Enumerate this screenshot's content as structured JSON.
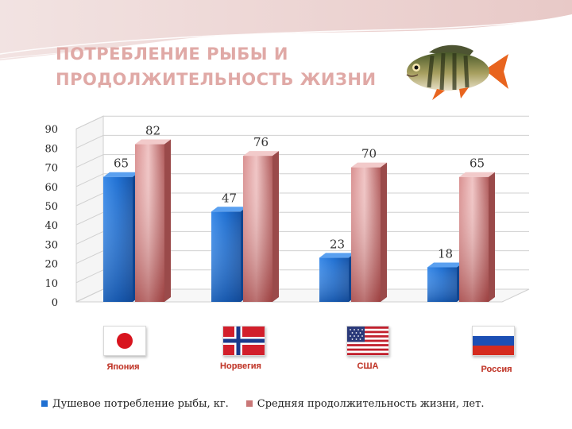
{
  "title": "ПОТРЕБЛЕНИЕ РЫБЫ И ПРОДОЛЖИТЕЛЬНОСТЬ ЖИЗНИ",
  "icons": {
    "fish": "perch-fish-icon",
    "flags": [
      "japan-flag-icon",
      "norway-flag-icon",
      "usa-flag-icon",
      "russia-flag-icon"
    ]
  },
  "colors": {
    "fish_series": "#1f6fd1",
    "life_series": "#c97777",
    "title": "#e0a9a6",
    "country_label": "#c0392b"
  },
  "chart_data": {
    "type": "bar",
    "categories": [
      "Япония",
      "Норвегия",
      "США",
      "Россия"
    ],
    "series": [
      {
        "name": "Душевое потребление рыбы, кг.",
        "values": [
          65,
          47,
          23,
          18
        ]
      },
      {
        "name": "Средняя продолжительность жизни, лет.",
        "values": [
          82,
          76,
          70,
          65
        ]
      }
    ],
    "ylim": [
      0,
      90
    ],
    "yticks": [
      "0",
      "10",
      "20",
      "30",
      "40",
      "50",
      "60",
      "70",
      "80",
      "90"
    ],
    "grid": true,
    "legend_position": "bottom",
    "style": "3d-clustered"
  }
}
